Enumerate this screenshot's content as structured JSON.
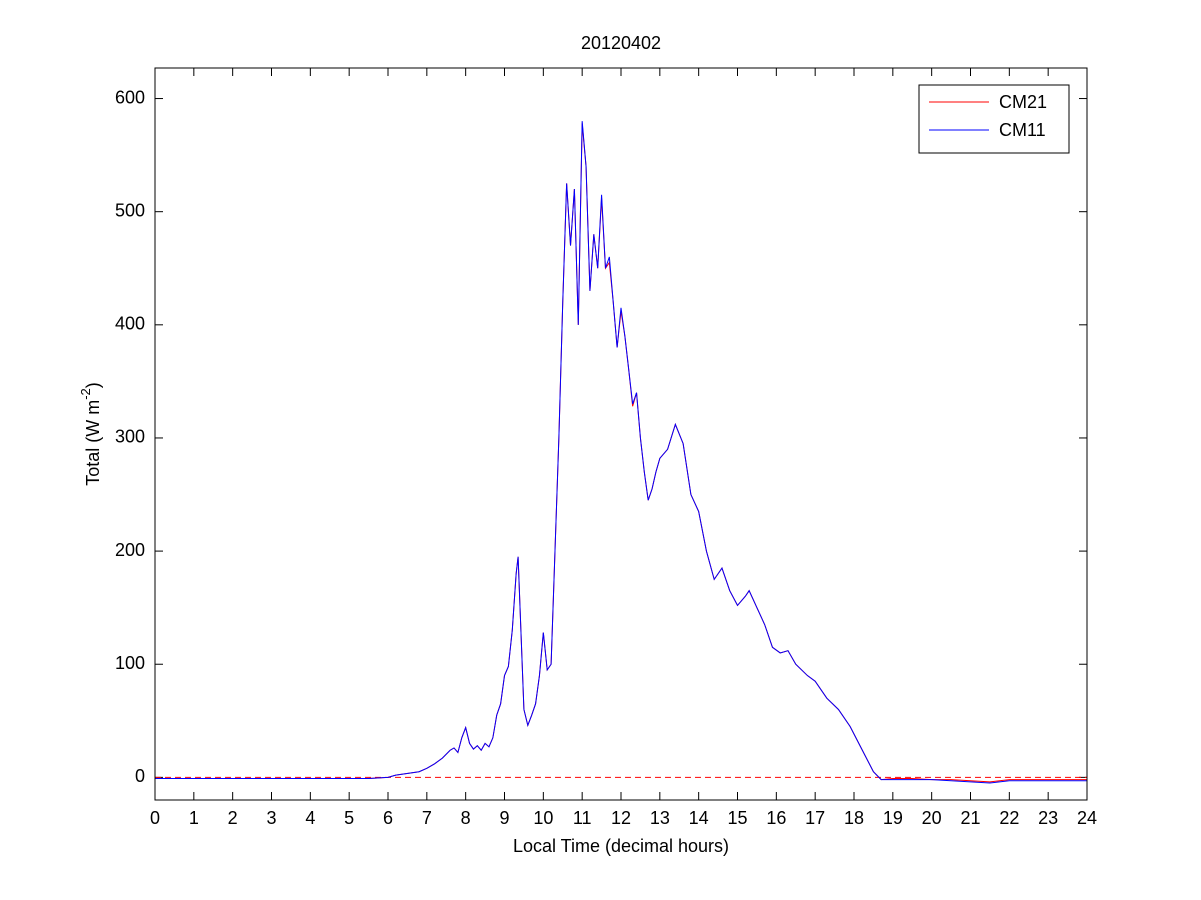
{
  "chart_data": {
    "type": "line",
    "title": "20120402",
    "xlabel": "Local Time (decimal hours)",
    "ylabel": [
      "Total (W m",
      "-2",
      ")"
    ],
    "x": [
      0,
      0.5,
      1,
      1.5,
      2,
      2.5,
      3,
      3.5,
      4,
      4.5,
      5,
      5.5,
      6,
      6.2,
      6.4,
      6.6,
      6.8,
      7.0,
      7.2,
      7.4,
      7.6,
      7.7,
      7.8,
      7.9,
      8.0,
      8.1,
      8.2,
      8.3,
      8.4,
      8.5,
      8.6,
      8.7,
      8.8,
      8.9,
      9.0,
      9.1,
      9.2,
      9.3,
      9.35,
      9.4,
      9.5,
      9.6,
      9.7,
      9.8,
      9.9,
      10.0,
      10.1,
      10.2,
      10.3,
      10.4,
      10.5,
      10.6,
      10.7,
      10.8,
      10.9,
      11.0,
      11.1,
      11.2,
      11.3,
      11.4,
      11.5,
      11.6,
      11.7,
      11.8,
      11.9,
      12.0,
      12.1,
      12.2,
      12.3,
      12.4,
      12.5,
      12.6,
      12.7,
      12.8,
      12.9,
      13.0,
      13.2,
      13.4,
      13.6,
      13.8,
      14.0,
      14.2,
      14.4,
      14.6,
      14.8,
      15.0,
      15.2,
      15.3,
      15.5,
      15.7,
      15.9,
      16.1,
      16.3,
      16.5,
      16.8,
      17.0,
      17.3,
      17.6,
      17.9,
      18.2,
      18.5,
      18.7,
      19.0,
      19.5,
      20,
      20.5,
      21,
      21.5,
      22,
      22.5,
      23,
      23.5,
      24
    ],
    "series": [
      {
        "name": "CM21",
        "color": "#ff0000",
        "values": [
          -1,
          -1,
          -1,
          -1,
          -1,
          -1,
          -1,
          -1,
          -1,
          -1,
          -1,
          -1,
          0,
          2,
          3,
          4,
          5,
          8,
          12,
          17,
          24,
          26,
          22,
          35,
          44,
          30,
          25,
          28,
          24,
          30,
          27,
          35,
          55,
          65,
          90,
          98,
          130,
          180,
          195,
          150,
          60,
          46,
          55,
          65,
          90,
          128,
          95,
          100,
          200,
          300,
          420,
          525,
          470,
          520,
          400,
          578,
          540,
          430,
          480,
          450,
          512,
          450,
          455,
          420,
          380,
          412,
          390,
          360,
          328,
          340,
          300,
          270,
          245,
          255,
          270,
          282,
          290,
          312,
          295,
          250,
          235,
          200,
          175,
          185,
          165,
          152,
          160,
          165,
          150,
          135,
          115,
          110,
          112,
          100,
          90,
          85,
          70,
          60,
          45,
          25,
          5,
          -2,
          -1,
          -1,
          -2,
          -2,
          -3,
          -4,
          -2,
          -2,
          -2,
          -2,
          -2
        ]
      },
      {
        "name": "CM11",
        "color": "#0000ff",
        "values": [
          -1,
          -1,
          -1,
          -1,
          -1,
          -1,
          -1,
          -1,
          -1,
          -1,
          -1,
          -1,
          0,
          2,
          3,
          4,
          5,
          8,
          12,
          17,
          24,
          26,
          22,
          35,
          44,
          30,
          25,
          28,
          24,
          30,
          27,
          35,
          55,
          65,
          90,
          98,
          130,
          180,
          195,
          150,
          60,
          46,
          55,
          65,
          90,
          128,
          95,
          100,
          200,
          300,
          420,
          525,
          470,
          520,
          400,
          580,
          540,
          430,
          480,
          450,
          515,
          450,
          460,
          420,
          380,
          415,
          390,
          360,
          330,
          340,
          300,
          270,
          245,
          255,
          270,
          282,
          290,
          312,
          295,
          250,
          235,
          200,
          175,
          185,
          165,
          152,
          160,
          165,
          150,
          135,
          115,
          110,
          112,
          100,
          90,
          85,
          70,
          60,
          45,
          25,
          5,
          -2,
          -2,
          -2,
          -2,
          -3,
          -4,
          -5,
          -3,
          -3,
          -3,
          -3,
          -3
        ]
      }
    ],
    "reference_line": {
      "value": 0,
      "color": "#ff0000",
      "style": "dashed"
    },
    "xlim": [
      0,
      24
    ],
    "xticks": [
      0,
      1,
      2,
      3,
      4,
      5,
      6,
      7,
      8,
      9,
      10,
      11,
      12,
      13,
      14,
      15,
      16,
      17,
      18,
      19,
      20,
      21,
      22,
      23,
      24
    ],
    "ylim": [
      -20,
      627
    ],
    "yticks": [
      0,
      100,
      200,
      300,
      400,
      500,
      600
    ],
    "grid": false,
    "legend": "northeast"
  }
}
